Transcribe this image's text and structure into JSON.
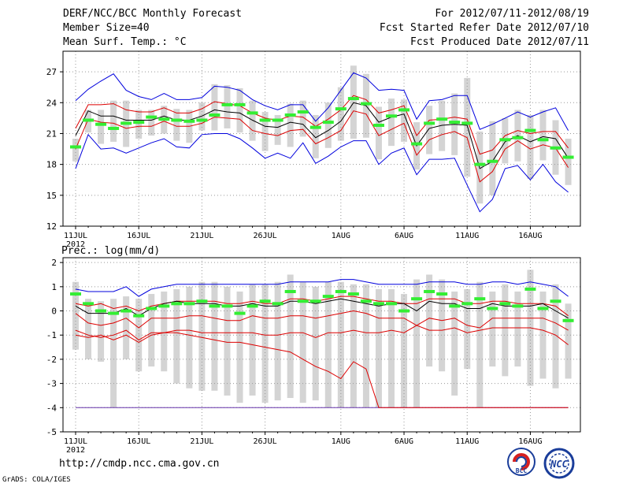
{
  "header": {
    "title": "DERF/NCC/BCC Monthly Forecast",
    "member_size": "Member Size=40",
    "variable": "Mean Surf. Temp.: °C",
    "period": "For 2012/07/11-2012/08/19",
    "started": "Fcst Started Refer Date 2012/07/10",
    "produced": "Fcst Produced Date 2012/07/11"
  },
  "footer": {
    "url": "http://cmdp.ncc.cma.gov.cn",
    "grads": "GrADS: COLA/IGES",
    "logo_bcc": "BCC",
    "logo_ncc": "NCC"
  },
  "colors": {
    "envelope": "#0000dd",
    "inner": "#dd0000",
    "median": "#000000",
    "mean": "#33ee33",
    "box": "#d4d4d4",
    "grid": "#999999"
  },
  "chart_data": [
    {
      "type": "line",
      "title": "Mean Surf. Temp.: °C",
      "ylim": [
        12,
        29
      ],
      "yticks": [
        12,
        15,
        18,
        21,
        24,
        27
      ],
      "xtick_labels": [
        "11JUL",
        "16JUL",
        "21JUL",
        "26JUL",
        "1AUG",
        "6AUG",
        "11AUG",
        "16AUG"
      ],
      "xtick_days": [
        0,
        5,
        10,
        15,
        21,
        26,
        31,
        36
      ],
      "year_label": "2012",
      "days": 40,
      "series": [
        {
          "name": "max",
          "values": [
            24.2,
            25.3,
            26.1,
            26.8,
            25.2,
            24.6,
            24.3,
            24.9,
            24.3,
            24.3,
            24.5,
            25.6,
            25.5,
            25.2,
            24.3,
            23.7,
            23.3,
            23.8,
            23.8,
            22.2,
            23.5,
            25.2,
            26.9,
            26.4,
            25.2,
            25.3,
            25.2,
            22.4,
            24.2,
            24.3,
            24.7,
            24.7,
            21.4,
            21.9,
            22.5,
            23.1,
            22.6,
            23.1,
            23.5,
            21.3
          ]
        },
        {
          "name": "upper",
          "values": [
            21.5,
            23.8,
            23.8,
            23.9,
            23.3,
            23.1,
            23.1,
            23.5,
            23.0,
            23.0,
            23.4,
            24.1,
            23.9,
            23.7,
            23.0,
            22.5,
            22.3,
            22.7,
            22.6,
            21.7,
            22.4,
            23.3,
            24.7,
            24.3,
            23.0,
            23.3,
            23.7,
            20.8,
            22.3,
            22.4,
            22.6,
            22.4,
            19.0,
            19.4,
            20.8,
            21.3,
            21.0,
            21.2,
            21.2,
            19.6
          ]
        },
        {
          "name": "median",
          "values": [
            20.8,
            23.2,
            22.7,
            22.7,
            22.3,
            22.3,
            22.3,
            22.7,
            22.3,
            22.3,
            22.7,
            23.3,
            23.1,
            23.0,
            22.3,
            21.7,
            21.6,
            22.1,
            21.9,
            20.6,
            21.3,
            22.2,
            24.0,
            23.7,
            22.1,
            22.6,
            22.9,
            19.8,
            21.5,
            21.8,
            21.9,
            21.8,
            17.6,
            18.3,
            20.2,
            20.8,
            20.2,
            20.7,
            20.5,
            18.6
          ]
        },
        {
          "name": "lower",
          "values": [
            19.5,
            22.4,
            22.1,
            22.0,
            21.5,
            21.7,
            21.7,
            22.2,
            21.7,
            21.7,
            22.0,
            22.6,
            22.5,
            22.4,
            21.3,
            21.0,
            20.8,
            21.3,
            21.4,
            20.0,
            20.6,
            21.3,
            23.2,
            22.9,
            20.8,
            21.4,
            22.0,
            18.9,
            20.4,
            20.9,
            21.2,
            20.6,
            16.3,
            17.3,
            19.5,
            20.3,
            19.5,
            19.9,
            19.6,
            17.7
          ]
        },
        {
          "name": "min",
          "values": [
            17.6,
            20.9,
            19.5,
            19.6,
            19.1,
            19.6,
            20.1,
            20.5,
            19.7,
            19.6,
            20.9,
            21.0,
            21.0,
            20.5,
            19.6,
            18.6,
            19.1,
            18.6,
            20.1,
            18.1,
            18.8,
            19.7,
            20.3,
            20.3,
            18.0,
            19.1,
            19.6,
            17.0,
            18.5,
            18.5,
            18.6,
            16.0,
            13.4,
            14.6,
            17.6,
            17.9,
            16.5,
            18.0,
            16.3,
            15.3
          ]
        },
        {
          "name": "ensemble_mean",
          "values": [
            19.7,
            22.3,
            21.9,
            21.5,
            22.0,
            22.1,
            22.6,
            22.4,
            22.3,
            22.2,
            22.3,
            22.8,
            23.8,
            23.8,
            23.0,
            22.3,
            22.3,
            22.8,
            23.1,
            21.6,
            22.1,
            23.4,
            24.4,
            23.9,
            21.8,
            22.7,
            23.3,
            20.0,
            22.0,
            22.4,
            22.1,
            22.0,
            18.0,
            18.3,
            20.4,
            20.6,
            21.3,
            20.4,
            19.6,
            18.7
          ]
        },
        {
          "name": "box_high",
          "values": [
            20.5,
            23.3,
            23.3,
            24.2,
            24.2,
            23.3,
            23.3,
            23.7,
            23.4,
            23.3,
            24.0,
            25.8,
            25.7,
            25.4,
            24.2,
            23.1,
            22.8,
            23.9,
            24.2,
            22.8,
            24.0,
            25.5,
            27.6,
            26.8,
            23.6,
            24.4,
            24.3,
            22.1,
            23.7,
            24.2,
            24.9,
            26.4,
            21.2,
            22.2,
            22.5,
            23.3,
            22.8,
            23.3,
            22.3,
            20.5
          ]
        },
        {
          "name": "box_low",
          "values": [
            18.3,
            21.1,
            20.0,
            20.2,
            19.7,
            20.5,
            20.8,
            21.0,
            20.3,
            20.1,
            21.3,
            21.3,
            21.5,
            21.1,
            20.3,
            19.3,
            19.9,
            19.7,
            20.7,
            18.6,
            19.6,
            20.3,
            20.5,
            20.6,
            18.5,
            19.8,
            20.2,
            17.5,
            19.0,
            19.3,
            18.9,
            16.8,
            14.2,
            15.0,
            18.1,
            18.3,
            16.6,
            18.4,
            17.0,
            16.0
          ]
        }
      ]
    },
    {
      "type": "line",
      "title": "Prec.: log(mm/d)",
      "ylim": [
        -5,
        2.2
      ],
      "yticks": [
        -5,
        -4,
        -3,
        -2,
        -1,
        0,
        1,
        2
      ],
      "xtick_labels": [
        "11JUL",
        "16JUL",
        "21JUL",
        "26JUL",
        "1AUG",
        "6AUG",
        "11AUG",
        "16AUG"
      ],
      "xtick_days": [
        0,
        5,
        10,
        15,
        21,
        26,
        31,
        36
      ],
      "year_label": "2012",
      "days": 40,
      "series": [
        {
          "name": "max",
          "values": [
            0.9,
            0.8,
            0.8,
            0.8,
            1.0,
            0.6,
            0.9,
            1.0,
            1.1,
            1.1,
            1.1,
            1.1,
            1.1,
            1.1,
            1.1,
            1.1,
            1.1,
            1.2,
            1.2,
            1.2,
            1.2,
            1.3,
            1.3,
            1.2,
            1.1,
            1.1,
            1.1,
            1.1,
            1.2,
            1.2,
            1.2,
            1.1,
            1.1,
            1.2,
            1.2,
            1.1,
            1.2,
            1.1,
            1.0,
            0.6
          ]
        },
        {
          "name": "upper",
          "values": [
            0.3,
            0.2,
            0.3,
            0.1,
            0.2,
            0.0,
            0.2,
            0.3,
            0.4,
            0.4,
            0.4,
            0.4,
            0.3,
            0.3,
            0.4,
            0.3,
            0.3,
            0.5,
            0.5,
            0.4,
            0.5,
            0.6,
            0.6,
            0.5,
            0.4,
            0.4,
            0.3,
            0.3,
            0.5,
            0.5,
            0.5,
            0.3,
            0.3,
            0.4,
            0.4,
            0.3,
            0.3,
            0.3,
            0.2,
            -0.2
          ]
        },
        {
          "name": "median",
          "values": [
            0.2,
            -0.1,
            -0.1,
            -0.1,
            0.1,
            -0.2,
            0.1,
            0.3,
            0.4,
            0.3,
            0.3,
            0.3,
            0.2,
            0.2,
            0.3,
            0.2,
            0.2,
            0.4,
            0.4,
            0.3,
            0.4,
            0.5,
            0.4,
            0.3,
            0.2,
            0.3,
            0.3,
            0.0,
            0.4,
            0.3,
            0.3,
            0.1,
            0.1,
            0.3,
            0.2,
            0.2,
            0.2,
            0.3,
            0.0,
            -0.3
          ]
        },
        {
          "name": "lower",
          "values": [
            -0.1,
            -0.5,
            -0.6,
            -0.5,
            -0.3,
            -0.7,
            -0.3,
            -0.3,
            -0.3,
            -0.2,
            -0.2,
            -0.3,
            -0.4,
            -0.4,
            -0.2,
            -0.3,
            -0.3,
            -0.2,
            -0.2,
            -0.3,
            -0.2,
            -0.1,
            0.0,
            -0.1,
            -0.3,
            -0.3,
            -0.3,
            -0.6,
            -0.3,
            -0.4,
            -0.3,
            -0.6,
            -0.7,
            -0.3,
            -0.3,
            -0.3,
            -0.3,
            -0.3,
            -0.5,
            -0.8
          ]
        },
        {
          "name": "p10",
          "values": [
            -1.0,
            -1.1,
            -1.0,
            -1.2,
            -1.0,
            -1.3,
            -1.0,
            -0.9,
            -0.9,
            -1.0,
            -1.1,
            -1.2,
            -1.3,
            -1.3,
            -1.4,
            -1.5,
            -1.6,
            -1.7,
            -2.0,
            -2.3,
            -2.5,
            -2.8,
            -2.1,
            -2.4,
            -4.0,
            -4.0,
            -4.0,
            -4.0,
            -4.0,
            -4.0,
            -4.0,
            -4.0,
            -4.0,
            -4.0,
            -4.0,
            -4.0,
            -4.0,
            -4.0,
            -4.0,
            -4.0
          ]
        },
        {
          "name": "p20",
          "values": [
            -0.8,
            -1.0,
            -1.1,
            -1.0,
            -0.8,
            -1.2,
            -0.9,
            -0.9,
            -0.8,
            -0.8,
            -0.9,
            -0.9,
            -0.9,
            -0.9,
            -0.9,
            -1.0,
            -1.0,
            -0.9,
            -0.9,
            -1.1,
            -0.9,
            -0.9,
            -0.8,
            -0.9,
            -0.9,
            -0.8,
            -0.9,
            -0.6,
            -0.8,
            -0.8,
            -0.7,
            -0.9,
            -0.8,
            -0.7,
            -0.7,
            -0.7,
            -0.7,
            -0.8,
            -1.0,
            -1.4
          ]
        },
        {
          "name": "min",
          "values": [
            -4.0,
            -4.0,
            -4.0,
            -4.0,
            -4.0,
            -4.0,
            -4.0,
            -4.0,
            -4.0,
            -4.0,
            -4.0,
            -4.0,
            -4.0,
            -4.0,
            -4.0,
            -4.0,
            -4.0,
            -4.0,
            -4.0,
            -4.0,
            -4.0,
            -4.0,
            -4.0,
            -4.0,
            -4.0,
            -4.0,
            -4.0,
            -4.0,
            -4.0,
            -4.0,
            -4.0,
            -4.0,
            -4.0,
            -4.0,
            -4.0,
            -4.0,
            -4.0,
            -4.0,
            -4.0,
            -4.0
          ]
        },
        {
          "name": "ensemble_mean",
          "values": [
            0.7,
            0.3,
            0.0,
            -0.1,
            0.0,
            -0.2,
            0.1,
            0.2,
            0.3,
            0.3,
            0.4,
            0.2,
            0.2,
            -0.1,
            0.2,
            0.4,
            0.3,
            0.8,
            0.4,
            0.4,
            0.6,
            0.8,
            0.7,
            0.4,
            0.3,
            0.3,
            0.0,
            0.5,
            0.8,
            0.7,
            0.2,
            0.3,
            0.5,
            0.1,
            0.3,
            0.2,
            0.9,
            0.1,
            0.4,
            -0.4
          ]
        },
        {
          "name": "box_high",
          "values": [
            1.2,
            0.5,
            0.4,
            0.5,
            0.6,
            0.5,
            0.7,
            0.8,
            0.9,
            1.0,
            1.2,
            1.2,
            1.0,
            0.8,
            1.1,
            1.1,
            1.2,
            1.5,
            1.2,
            1.0,
            1.2,
            1.2,
            1.1,
            1.1,
            0.9,
            0.9,
            0.7,
            1.3,
            1.5,
            1.3,
            0.8,
            0.9,
            1.2,
            0.8,
            1.1,
            0.8,
            1.7,
            0.8,
            1.1,
            0.3
          ]
        },
        {
          "name": "box_low",
          "values": [
            -1.6,
            -2.0,
            -2.1,
            -4.0,
            -2.0,
            -2.5,
            -2.3,
            -2.5,
            -3.0,
            -3.2,
            -3.3,
            -3.3,
            -3.5,
            -3.8,
            -3.5,
            -3.8,
            -3.7,
            -3.6,
            -3.8,
            -3.7,
            -4.0,
            -4.0,
            -4.0,
            -4.0,
            -4.0,
            -4.0,
            -4.0,
            -4.0,
            -2.3,
            -2.5,
            -3.5,
            -2.4,
            -4.0,
            -2.3,
            -2.7,
            -2.3,
            -3.1,
            -2.8,
            -3.2,
            -2.8
          ]
        }
      ]
    }
  ]
}
